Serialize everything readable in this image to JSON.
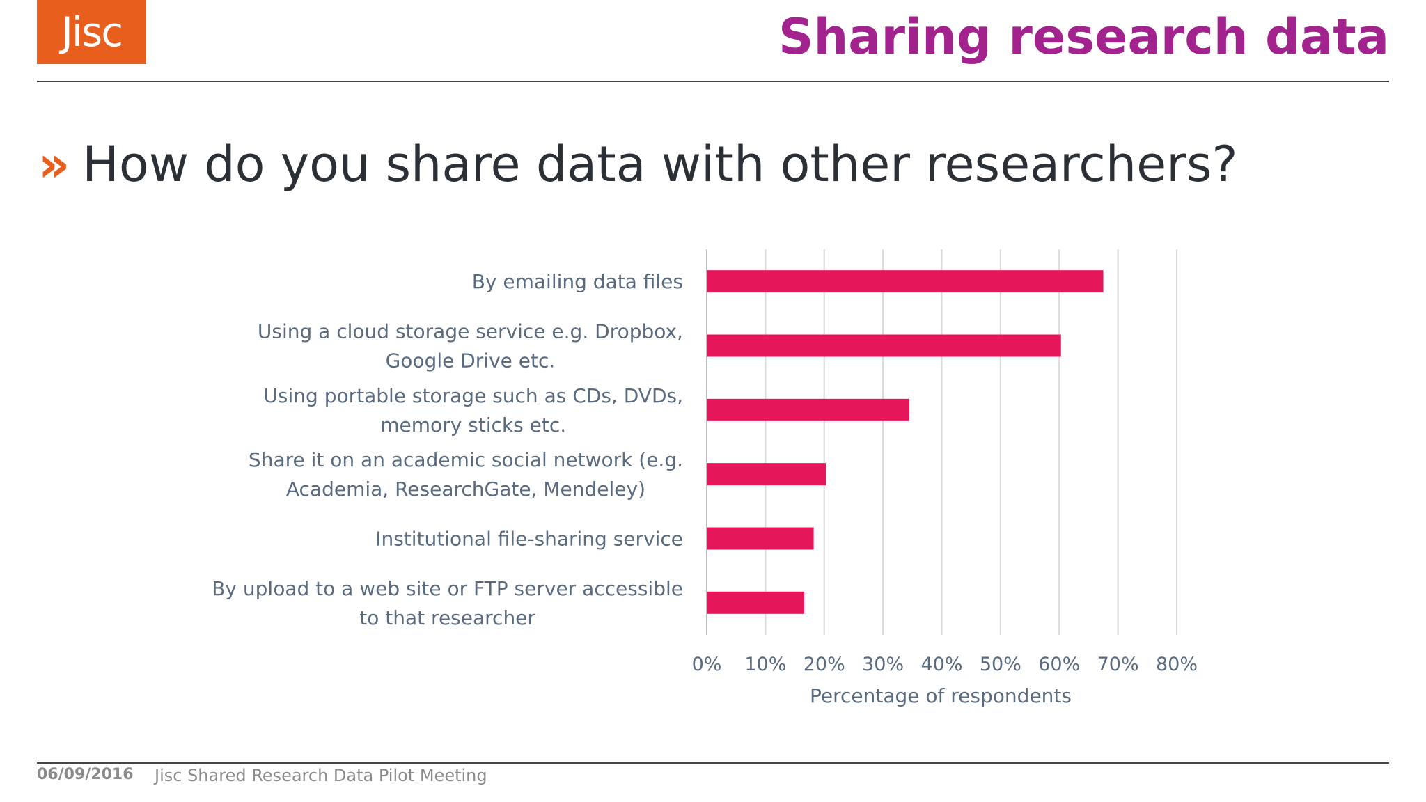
{
  "header": {
    "logo_text": "Jisc",
    "slide_title": "Sharing research data"
  },
  "question": {
    "chevron": "»",
    "text": "How do you share data with other researchers?"
  },
  "footer": {
    "date": "06/09/2016",
    "text": "Jisc Shared Research Data Pilot Meeting"
  },
  "colors": {
    "brand_orange": "#e85e1c",
    "title_magenta": "#a3238e",
    "bar": "#e5175a",
    "label_text": "#5b6b7f",
    "gridline": "#d9d9d9"
  },
  "chart_data": {
    "type": "bar",
    "orientation": "horizontal",
    "categories": [
      [
        "By emailing data files"
      ],
      [
        "Using a cloud storage service e.g. Dropbox,",
        "Google Drive etc."
      ],
      [
        "Using portable storage such as CDs, DVDs,",
        "memory sticks etc."
      ],
      [
        "Share it on an academic social network (e.g.",
        "Academia, ResearchGate, Mendeley)"
      ],
      [
        "Institutional file-sharing service"
      ],
      [
        "By upload to a web site or FTP server accessible",
        "to that researcher"
      ]
    ],
    "values": [
      67.5,
      60.3,
      34.5,
      20.3,
      18.2,
      16.6
    ],
    "xlim": [
      0,
      80
    ],
    "xticks": [
      0,
      10,
      20,
      30,
      40,
      50,
      60,
      70,
      80
    ],
    "xtick_labels": [
      "0%",
      "10%",
      "20%",
      "30%",
      "40%",
      "50%",
      "60%",
      "70%",
      "80%"
    ],
    "xlabel": "Percentage of respondents",
    "ylabel": "",
    "title": "",
    "grid": true,
    "legend": "none"
  }
}
